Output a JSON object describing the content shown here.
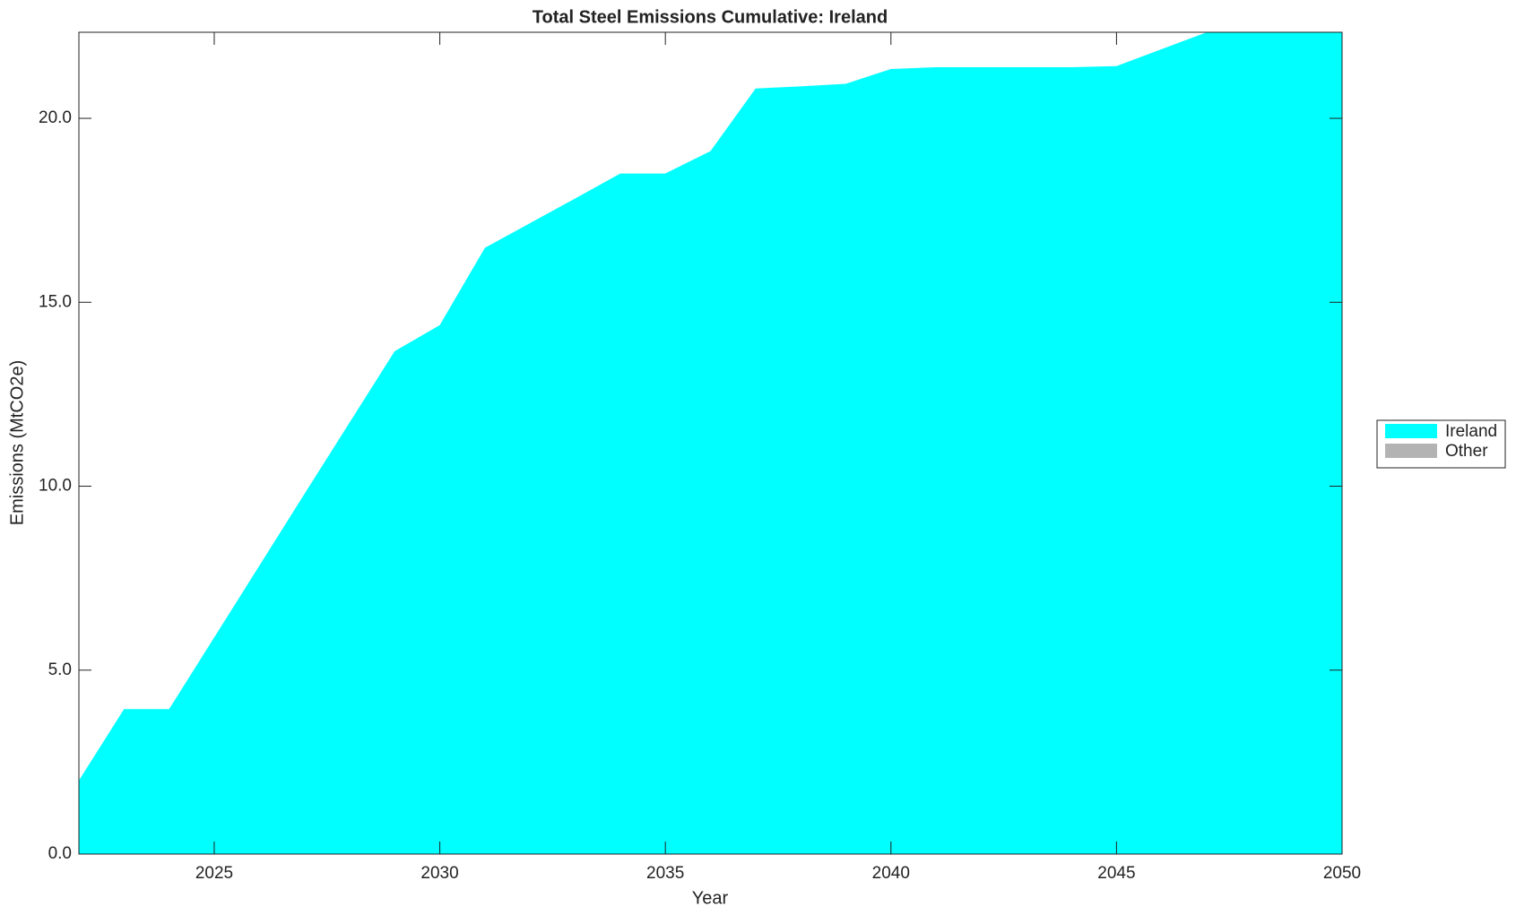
{
  "chart_data": {
    "type": "stacked_area",
    "title": "Total Steel Emissions Cumulative: Ireland",
    "x_label": "Year",
    "y_label": "Emissions (MtCO2e)",
    "x": [
      2022,
      2023,
      2024,
      2025,
      2026,
      2027,
      2028,
      2029,
      2030,
      2031,
      2032,
      2033,
      2034,
      2035,
      2036,
      2037,
      2038,
      2039,
      2040,
      2041,
      2042,
      2043,
      2044,
      2045,
      2046,
      2047,
      2048,
      2049,
      2050
    ],
    "series": [
      {
        "name": "Ireland",
        "color": "#00ffff",
        "values": [
          2.0,
          3.94,
          3.94,
          5.89,
          7.84,
          9.79,
          11.73,
          13.67,
          14.38,
          16.48,
          17.15,
          17.82,
          18.5,
          18.5,
          19.11,
          20.81,
          20.87,
          20.94,
          21.34,
          21.39,
          21.39,
          21.39,
          21.39,
          21.42,
          21.88,
          22.34,
          22.5,
          22.6,
          22.7
        ]
      },
      {
        "name": "Other",
        "color": "#b3b3b3",
        "values": [
          0,
          0,
          0,
          0,
          0,
          0,
          0,
          0,
          0,
          0,
          0,
          0,
          0,
          0,
          0,
          0,
          0,
          0,
          0,
          0,
          0,
          0,
          0,
          0,
          0,
          0,
          0,
          0,
          0
        ]
      }
    ],
    "xlim": [
      2022,
      2050
    ],
    "ylim": [
      0,
      22.34
    ],
    "xticks": [
      2025,
      2030,
      2035,
      2040,
      2045,
      2050
    ],
    "yticks": [
      {
        "value": 0,
        "label": "0.0"
      },
      {
        "value": 5,
        "label": "5.0"
      },
      {
        "value": 10,
        "label": "10.0"
      },
      {
        "value": 15,
        "label": "15.0"
      },
      {
        "value": 20,
        "label": "20.0"
      }
    ],
    "legend": "right"
  }
}
